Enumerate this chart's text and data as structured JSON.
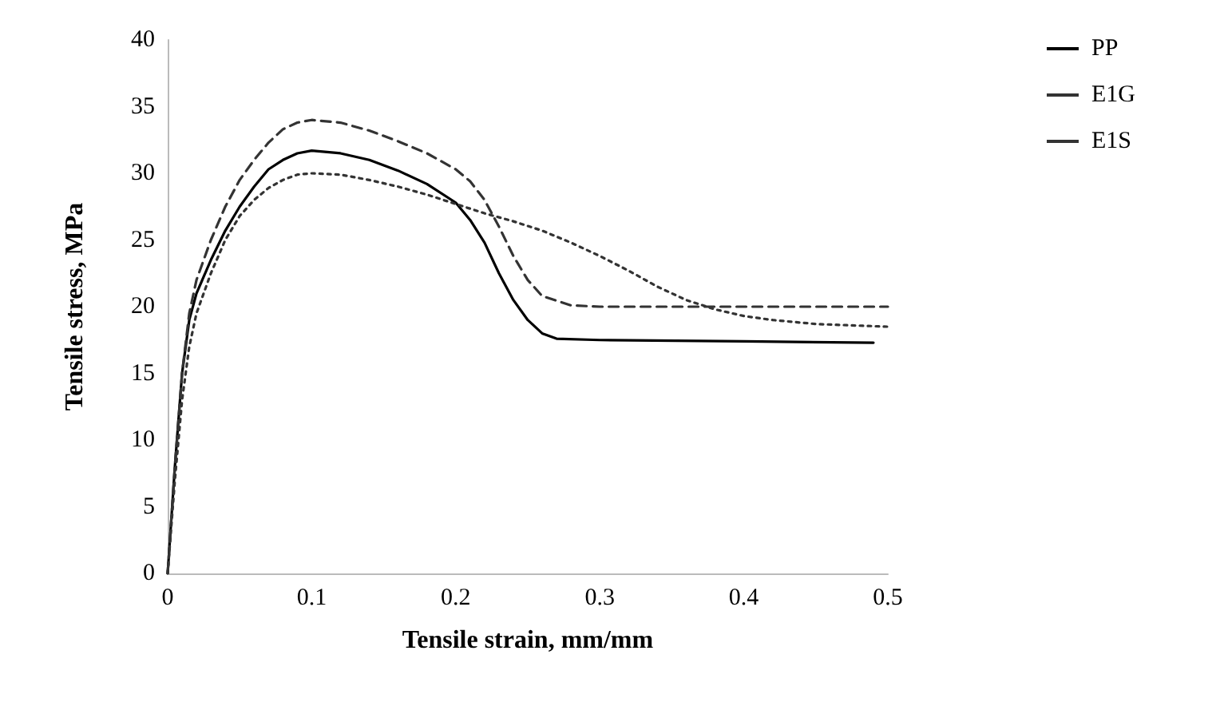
{
  "chart_data": {
    "type": "line",
    "xlabel": "Tensile strain, mm/mm",
    "ylabel": "Tensile stress, MPa",
    "xlim": [
      0,
      0.5
    ],
    "xticks": [
      0,
      0.1,
      0.2,
      0.3,
      0.4,
      0.5
    ],
    "ylim": [
      0,
      40
    ],
    "yticks": [
      0,
      5,
      10,
      15,
      20,
      25,
      30,
      35,
      40
    ],
    "grid": false,
    "legend": "top right",
    "marker": "none",
    "series": [
      {
        "name": "PP",
        "color": "#000000",
        "line_style": "solid",
        "x": [
          0,
          0.005,
          0.01,
          0.015,
          0.02,
          0.03,
          0.04,
          0.05,
          0.06,
          0.07,
          0.08,
          0.09,
          0.1,
          0.12,
          0.14,
          0.16,
          0.18,
          0.2,
          0.21,
          0.22,
          0.23,
          0.24,
          0.25,
          0.26,
          0.27,
          0.3,
          0.4,
          0.49
        ],
        "values": [
          0,
          8,
          15,
          19,
          21,
          23.5,
          25.7,
          27.5,
          29,
          30.3,
          31,
          31.5,
          31.7,
          31.5,
          31,
          30.2,
          29.2,
          27.8,
          26.5,
          24.8,
          22.5,
          20.5,
          19,
          18,
          17.6,
          17.5,
          17.4,
          17.3
        ]
      },
      {
        "name": "E1G",
        "color": "#333333",
        "line_style": "dashed",
        "x": [
          0,
          0.005,
          0.01,
          0.015,
          0.02,
          0.03,
          0.04,
          0.05,
          0.06,
          0.07,
          0.08,
          0.09,
          0.1,
          0.12,
          0.14,
          0.16,
          0.18,
          0.2,
          0.21,
          0.22,
          0.23,
          0.24,
          0.25,
          0.26,
          0.28,
          0.3,
          0.4,
          0.5
        ],
        "values": [
          0,
          8,
          15,
          19.5,
          22,
          25,
          27.5,
          29.5,
          31,
          32.3,
          33.3,
          33.8,
          34,
          33.8,
          33.2,
          32.4,
          31.5,
          30.3,
          29.4,
          28,
          26,
          23.8,
          22,
          20.8,
          20.1,
          20,
          20,
          20
        ]
      },
      {
        "name": "E1S",
        "color": "#333333",
        "line_style": "dotted",
        "x": [
          0,
          0.005,
          0.01,
          0.015,
          0.02,
          0.03,
          0.04,
          0.05,
          0.06,
          0.07,
          0.08,
          0.09,
          0.1,
          0.12,
          0.14,
          0.16,
          0.18,
          0.2,
          0.22,
          0.24,
          0.26,
          0.28,
          0.3,
          0.32,
          0.34,
          0.36,
          0.38,
          0.4,
          0.42,
          0.45,
          0.5
        ],
        "values": [
          0,
          7,
          13,
          17,
          19.5,
          22.5,
          25,
          26.8,
          28,
          28.9,
          29.5,
          29.9,
          30,
          29.9,
          29.5,
          29,
          28.4,
          27.7,
          27,
          26.4,
          25.7,
          24.8,
          23.8,
          22.7,
          21.5,
          20.5,
          19.8,
          19.3,
          19,
          18.7,
          18.5
        ]
      }
    ]
  }
}
